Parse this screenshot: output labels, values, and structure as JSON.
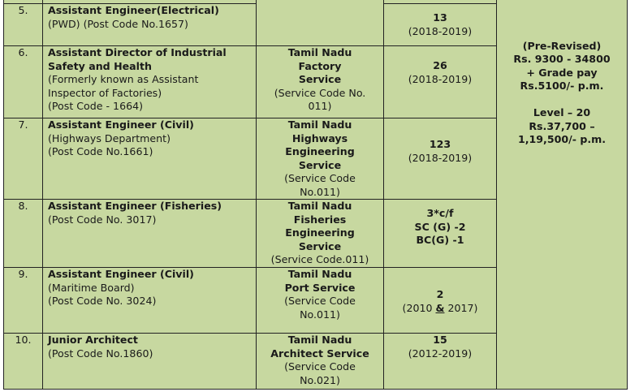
{
  "rows": [
    {
      "sno": "5.",
      "title": "Assistant Engineer(Electrical)",
      "details": "(PWD) (Post Code No.1657)",
      "service_name": "",
      "service_code": "",
      "vacancies": "13",
      "years": "(2018-2019)"
    },
    {
      "sno": "6.",
      "title": "Assistant Director of Industrial\nSafety and Health",
      "details": "(Formerly known as Assistant\nInspector of Factories)\n(Post Code - 1664)",
      "service_name": "Tamil Nadu\nFactory\nService",
      "service_code": "(Service Code No.\n011)",
      "vacancies": "26",
      "years": "(2018-2019)"
    },
    {
      "sno": "7.",
      "title": "Assistant Engineer (Civil)",
      "details": "(Highways Department)\n (Post Code No.1661)",
      "service_name": "Tamil Nadu\nHighways\nEngineering\nService",
      "service_code": "(Service Code\nNo.011)",
      "vacancies": "123",
      "years": "(2018-2019)"
    },
    {
      "sno": "8.",
      "title": "Assistant Engineer  (Fisheries)",
      "details": "(Post Code No. 3017)",
      "service_name": "Tamil Nadu\nFisheries\nEngineering\nService",
      "service_code": "(Service Code.011)",
      "vacancies": "3*c/f\nSC (G) -2\nBC(G)   -1",
      "years": ""
    },
    {
      "sno": "9.",
      "title": "Assistant Engineer (Civil)",
      "details": "(Maritime Board)\n(Post Code No. 3024)",
      "service_name": "Tamil Nadu\nPort Service",
      "service_code": "(Service Code\nNo.011)",
      "vacancies": "2",
      "years_a": "(2010 ",
      "years_amp": "&",
      "years_b": " 2017)"
    },
    {
      "sno": "10.",
      "title": "Junior Architect",
      "details": " (Post Code No.1860)",
      "service_name": "Tamil Nadu\nArchitect Service",
      "service_code": "(Service Code\nNo.021)",
      "vacancies": "15",
      "years": "(2012-2019)"
    }
  ],
  "pay_scale": "(Pre-Revised)\nRs. 9300 - 34800\n+ Grade pay\nRs.5100/- p.m.\n\nLevel – 20\nRs.37,700 –\n1,19,500/- p.m."
}
